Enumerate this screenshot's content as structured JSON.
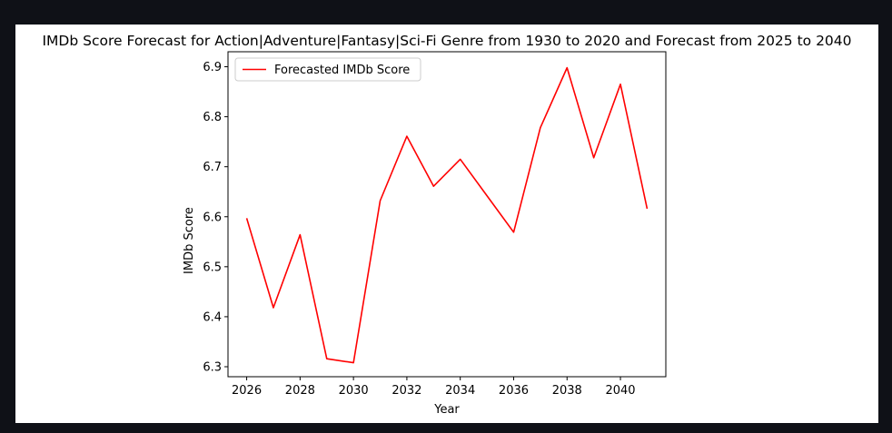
{
  "chart_data": {
    "type": "line",
    "title": "IMDb Score Forecast for Action|Adventure|Fantasy|Sci-Fi Genre from 1930 to 2020 and Forecast from 2025 to 2040",
    "xlabel": "Year",
    "ylabel": "IMDb Score",
    "xlim": [
      2025.3,
      2041.7
    ],
    "ylim": [
      6.28,
      6.93
    ],
    "xticks": [
      2026,
      2028,
      2030,
      2032,
      2034,
      2036,
      2038,
      2040
    ],
    "yticks": [
      6.3,
      6.4,
      6.5,
      6.6,
      6.7,
      6.8,
      6.9
    ],
    "grid": false,
    "legend_position": "upper-left",
    "series": [
      {
        "name": "Forecasted IMDb Score",
        "color": "#ff0000",
        "x": [
          2026,
          2027,
          2028,
          2029,
          2030,
          2031,
          2032,
          2033,
          2034,
          2035,
          2036,
          2037,
          2038,
          2039,
          2040,
          2041
        ],
        "y": [
          6.597,
          6.418,
          6.564,
          6.316,
          6.308,
          6.632,
          6.761,
          6.661,
          6.715,
          6.642,
          6.569,
          6.778,
          6.898,
          6.718,
          6.865,
          6.616
        ]
      }
    ]
  }
}
